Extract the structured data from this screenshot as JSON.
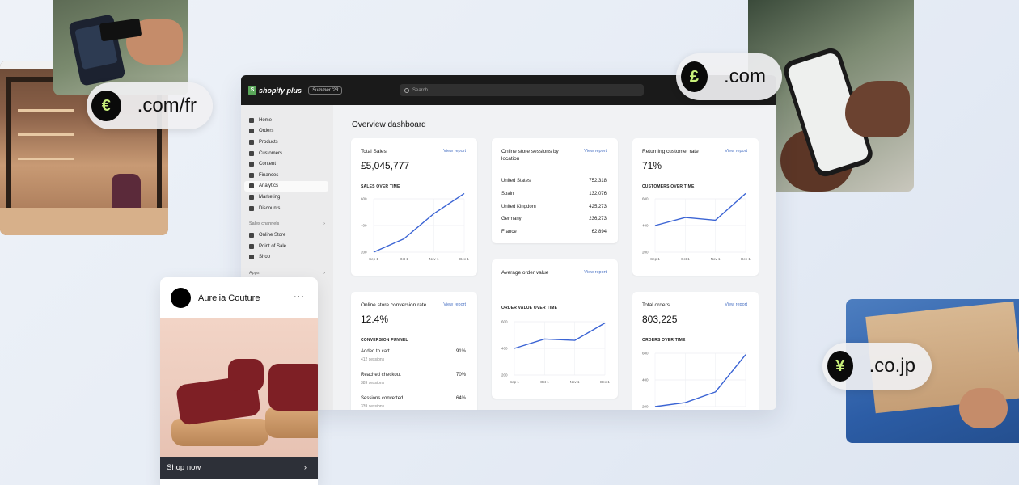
{
  "domains": {
    "fr": {
      "symbol": "€",
      "label": ".com/fr"
    },
    "com": {
      "symbol": "£",
      "label": ".com"
    },
    "jp": {
      "symbol": "¥",
      "label": ".co.jp"
    }
  },
  "dashboard": {
    "brand": "shopify plus",
    "edition": "Summer '23",
    "search_placeholder": "Search",
    "title": "Overview dashboard",
    "nav": [
      {
        "label": "Home",
        "icon": "home-icon"
      },
      {
        "label": "Orders",
        "icon": "orders-icon"
      },
      {
        "label": "Products",
        "icon": "tag-icon"
      },
      {
        "label": "Customers",
        "icon": "person-icon"
      },
      {
        "label": "Content",
        "icon": "content-icon"
      },
      {
        "label": "Finances",
        "icon": "bank-icon"
      },
      {
        "label": "Analytics",
        "icon": "bar-chart-icon"
      },
      {
        "label": "Marketing",
        "icon": "target-icon"
      },
      {
        "label": "Discounts",
        "icon": "discount-icon"
      }
    ],
    "sales_channels_label": "Sales channels",
    "channels": [
      {
        "label": "Online Store",
        "icon": "store-icon"
      },
      {
        "label": "Point of Sale",
        "icon": "pos-icon"
      },
      {
        "label": "Shop",
        "icon": "shop-icon"
      }
    ],
    "apps_label": "Apps",
    "view_report": "View report",
    "total_sales": {
      "title": "Total Sales",
      "value": "£5,045,777",
      "chart_label": "SALES OVER TIME"
    },
    "sessions_by_location": {
      "title": "Online store sessions by location",
      "rows": [
        {
          "country": "United States",
          "value": "752,318"
        },
        {
          "country": "Spain",
          "value": "132,076"
        },
        {
          "country": "United Kingdom",
          "value": "425,273"
        },
        {
          "country": "Germany",
          "value": "236,273"
        },
        {
          "country": "France",
          "value": "62,894"
        }
      ]
    },
    "returning_rate": {
      "title": "Returning customer rate",
      "value": "71%",
      "chart_label": "CUSTOMERS OVER TIME"
    },
    "conversion": {
      "title": "Online store conversion rate",
      "value": "12.4%",
      "funnel_label": "CONVERSION FUNNEL",
      "rows": [
        {
          "label": "Added to cart",
          "pct": "91%",
          "sessions": "412 sessions"
        },
        {
          "label": "Reached checkout",
          "pct": "70%",
          "sessions": "389 sessions"
        },
        {
          "label": "Sessions converted",
          "pct": "64%",
          "sessions": "339 sessions"
        }
      ]
    },
    "aov": {
      "title": "Average order value",
      "chart_label": "ORDER VALUE OVER TIME"
    },
    "total_orders": {
      "title": "Total orders",
      "value": "803,225",
      "chart_label": "ORDERS OVER TIME"
    }
  },
  "chart_data": [
    {
      "type": "line",
      "name": "sales-over-time",
      "title": "SALES OVER TIME",
      "x": [
        "Sep 1",
        "Oct 1",
        "Nov 1",
        "Dec 1"
      ],
      "yticks": [
        "200",
        "400",
        "600"
      ],
      "ylim": [
        200,
        600
      ],
      "values": [
        200,
        300,
        490,
        640
      ],
      "color": "#3b64d4"
    },
    {
      "type": "line",
      "name": "customers-over-time",
      "title": "CUSTOMERS OVER TIME",
      "x": [
        "Sep 1",
        "Oct 1",
        "Nov 1",
        "Dec 1"
      ],
      "yticks": [
        "200",
        "400",
        "600"
      ],
      "ylim": [
        200,
        600
      ],
      "values": [
        400,
        460,
        440,
        640
      ],
      "color": "#3b64d4"
    },
    {
      "type": "line",
      "name": "order-value-over-time",
      "title": "ORDER VALUE OVER TIME",
      "x": [
        "Sep 1",
        "Oct 1",
        "Nov 1",
        "Dec 1"
      ],
      "yticks": [
        "200",
        "400",
        "600"
      ],
      "ylim": [
        200,
        600
      ],
      "values": [
        400,
        470,
        460,
        590
      ],
      "color": "#3b64d4"
    },
    {
      "type": "line",
      "name": "orders-over-time",
      "title": "ORDERS OVER TIME",
      "x": [
        "Sep 1",
        "Oct 1",
        "Nov 1",
        "Dec 1"
      ],
      "yticks": [
        "200",
        "400",
        "600"
      ],
      "ylim": [
        200,
        600
      ],
      "values": [
        200,
        230,
        310,
        590
      ],
      "color": "#3b64d4"
    }
  ],
  "post": {
    "account": "Aurelia Couture",
    "more": "···",
    "cta": "Shop now",
    "cta_icon": "chevron-right-icon",
    "colors": {
      "strap": "#7e1f25",
      "sole": "#c9956a",
      "cta_bg": "#2d3038"
    }
  }
}
